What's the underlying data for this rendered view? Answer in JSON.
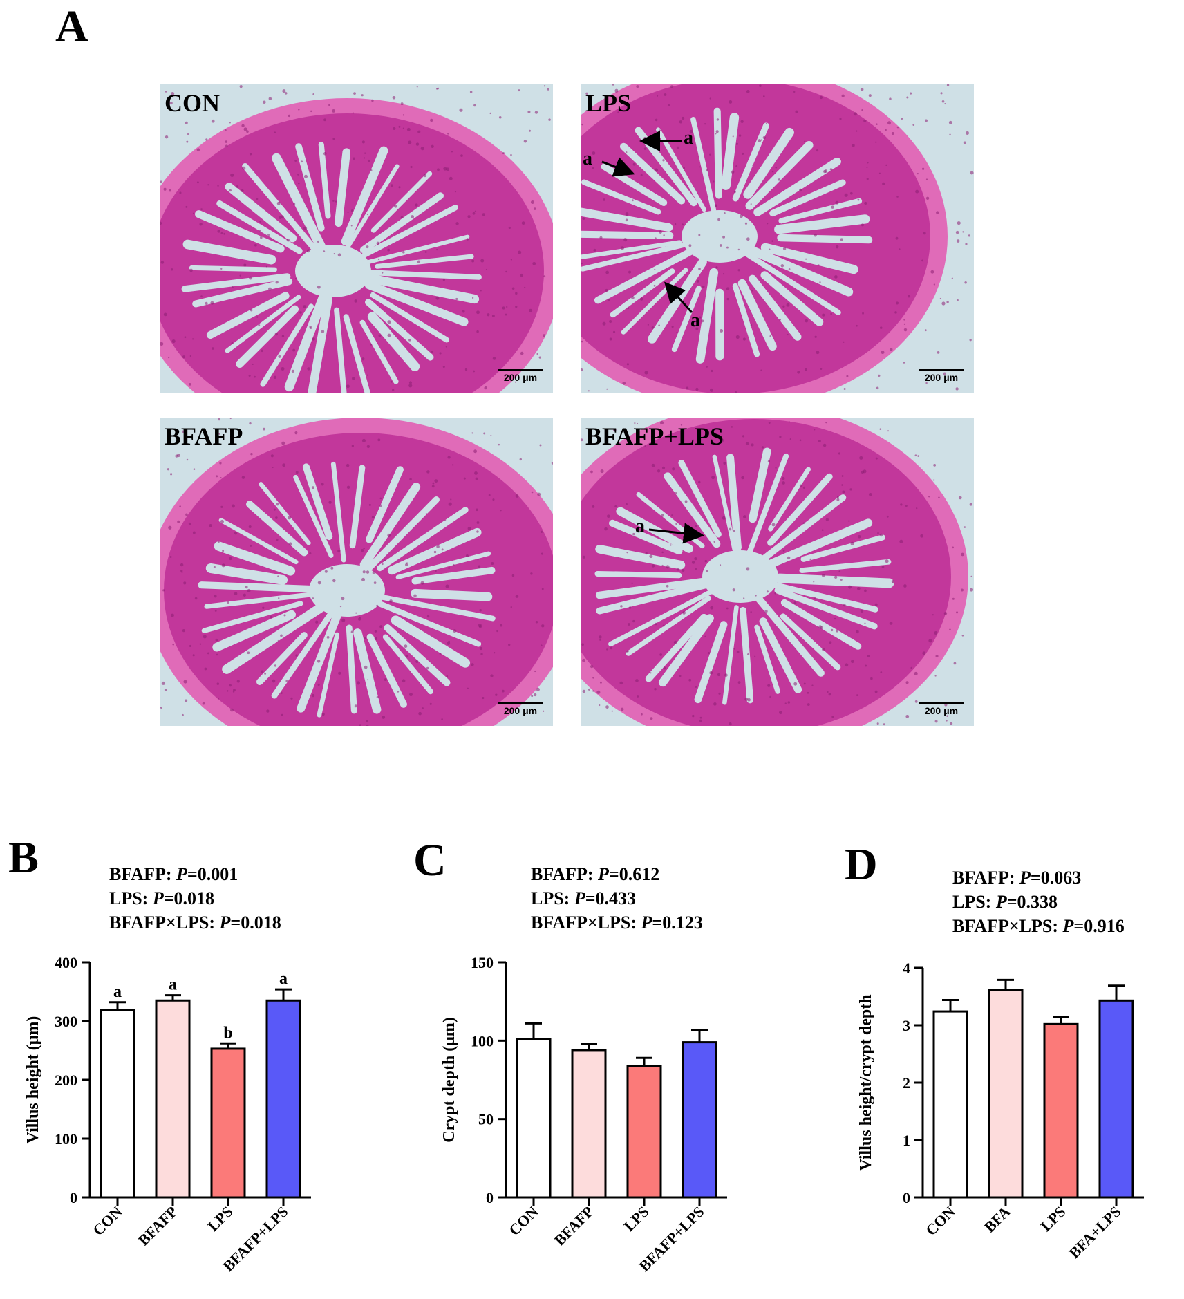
{
  "figure": {
    "panel_letters": [
      "A",
      "B",
      "C",
      "D"
    ],
    "micrographs": [
      {
        "label": "CON",
        "scale_bar": "200 μm",
        "arrows": []
      },
      {
        "label": "LPS",
        "scale_bar": "200 μm",
        "arrows": [
          "a",
          "a",
          "a"
        ]
      },
      {
        "label": "BFAFP",
        "scale_bar": "200 μm",
        "arrows": []
      },
      {
        "label": "BFAFP+LPS",
        "scale_bar": "200 μm",
        "arrows": [
          "a"
        ]
      }
    ],
    "colors": {
      "tissue": "#c2379b",
      "lumen": "#cfe0e6",
      "CON": "#ffffff",
      "BFAFP": "#fddcdc",
      "LPS": "#fb7a79",
      "BFAFP+LPS": "#5959f8"
    }
  },
  "chart_data": [
    {
      "type": "bar",
      "panel": "B",
      "stats": [
        {
          "factor": "BFAFP: ",
          "p_label": "P",
          "p_value": "=0.001"
        },
        {
          "factor": "LPS: ",
          "p_label": "P",
          "p_value": "=0.018"
        },
        {
          "factor": "BFAFP×LPS: ",
          "p_label": "P",
          "p_value": "=0.018"
        }
      ],
      "ylabel": "Villus height (μm)",
      "categories": [
        "CON",
        "BFAFP",
        "LPS",
        "BFAFP+LPS"
      ],
      "values": [
        319,
        335,
        253,
        335
      ],
      "errors": [
        13,
        9,
        9,
        19
      ],
      "significance": [
        "a",
        "a",
        "b",
        "a"
      ],
      "ylim": [
        0,
        400
      ],
      "yticks": [
        0,
        100,
        200,
        300,
        400
      ],
      "colors": [
        "#ffffff",
        "#fddcdc",
        "#fb7a79",
        "#5959f8"
      ]
    },
    {
      "type": "bar",
      "panel": "C",
      "stats": [
        {
          "factor": "BFAFP: ",
          "p_label": "P",
          "p_value": "=0.612"
        },
        {
          "factor": "LPS: ",
          "p_label": "P",
          "p_value": "=0.433"
        },
        {
          "factor": "BFAFP×LPS: ",
          "p_label": "P",
          "p_value": "=0.123"
        }
      ],
      "ylabel": "Crypt depth (μm)",
      "categories": [
        "CON",
        "BFAFP",
        "LPS",
        "BFAFP+LPS"
      ],
      "values": [
        101,
        94,
        84,
        99
      ],
      "errors": [
        10,
        4,
        5,
        8
      ],
      "significance": [
        "",
        "",
        "",
        ""
      ],
      "ylim": [
        0,
        150
      ],
      "yticks": [
        0,
        50,
        100,
        150
      ],
      "colors": [
        "#ffffff",
        "#fddcdc",
        "#fb7a79",
        "#5959f8"
      ]
    },
    {
      "type": "bar",
      "panel": "D",
      "stats": [
        {
          "factor": "BFAFP: ",
          "p_label": "P",
          "p_value": "=0.063"
        },
        {
          "factor": "LPS: ",
          "p_label": "P",
          "p_value": "=0.338"
        },
        {
          "factor": "BFAFP×LPS: ",
          "p_label": "P",
          "p_value": "=0.916"
        }
      ],
      "ylabel": "Villus height/crypt depth",
      "categories": [
        "CON",
        "BFA",
        "LPS",
        "BFA+LPS"
      ],
      "values": [
        3.24,
        3.61,
        3.02,
        3.43
      ],
      "errors": [
        0.2,
        0.18,
        0.13,
        0.26
      ],
      "significance": [
        "",
        "",
        "",
        ""
      ],
      "ylim": [
        0,
        4
      ],
      "yticks": [
        0,
        1,
        2,
        3,
        4
      ],
      "colors": [
        "#ffffff",
        "#fddcdc",
        "#fb7a79",
        "#5959f8"
      ]
    }
  ]
}
